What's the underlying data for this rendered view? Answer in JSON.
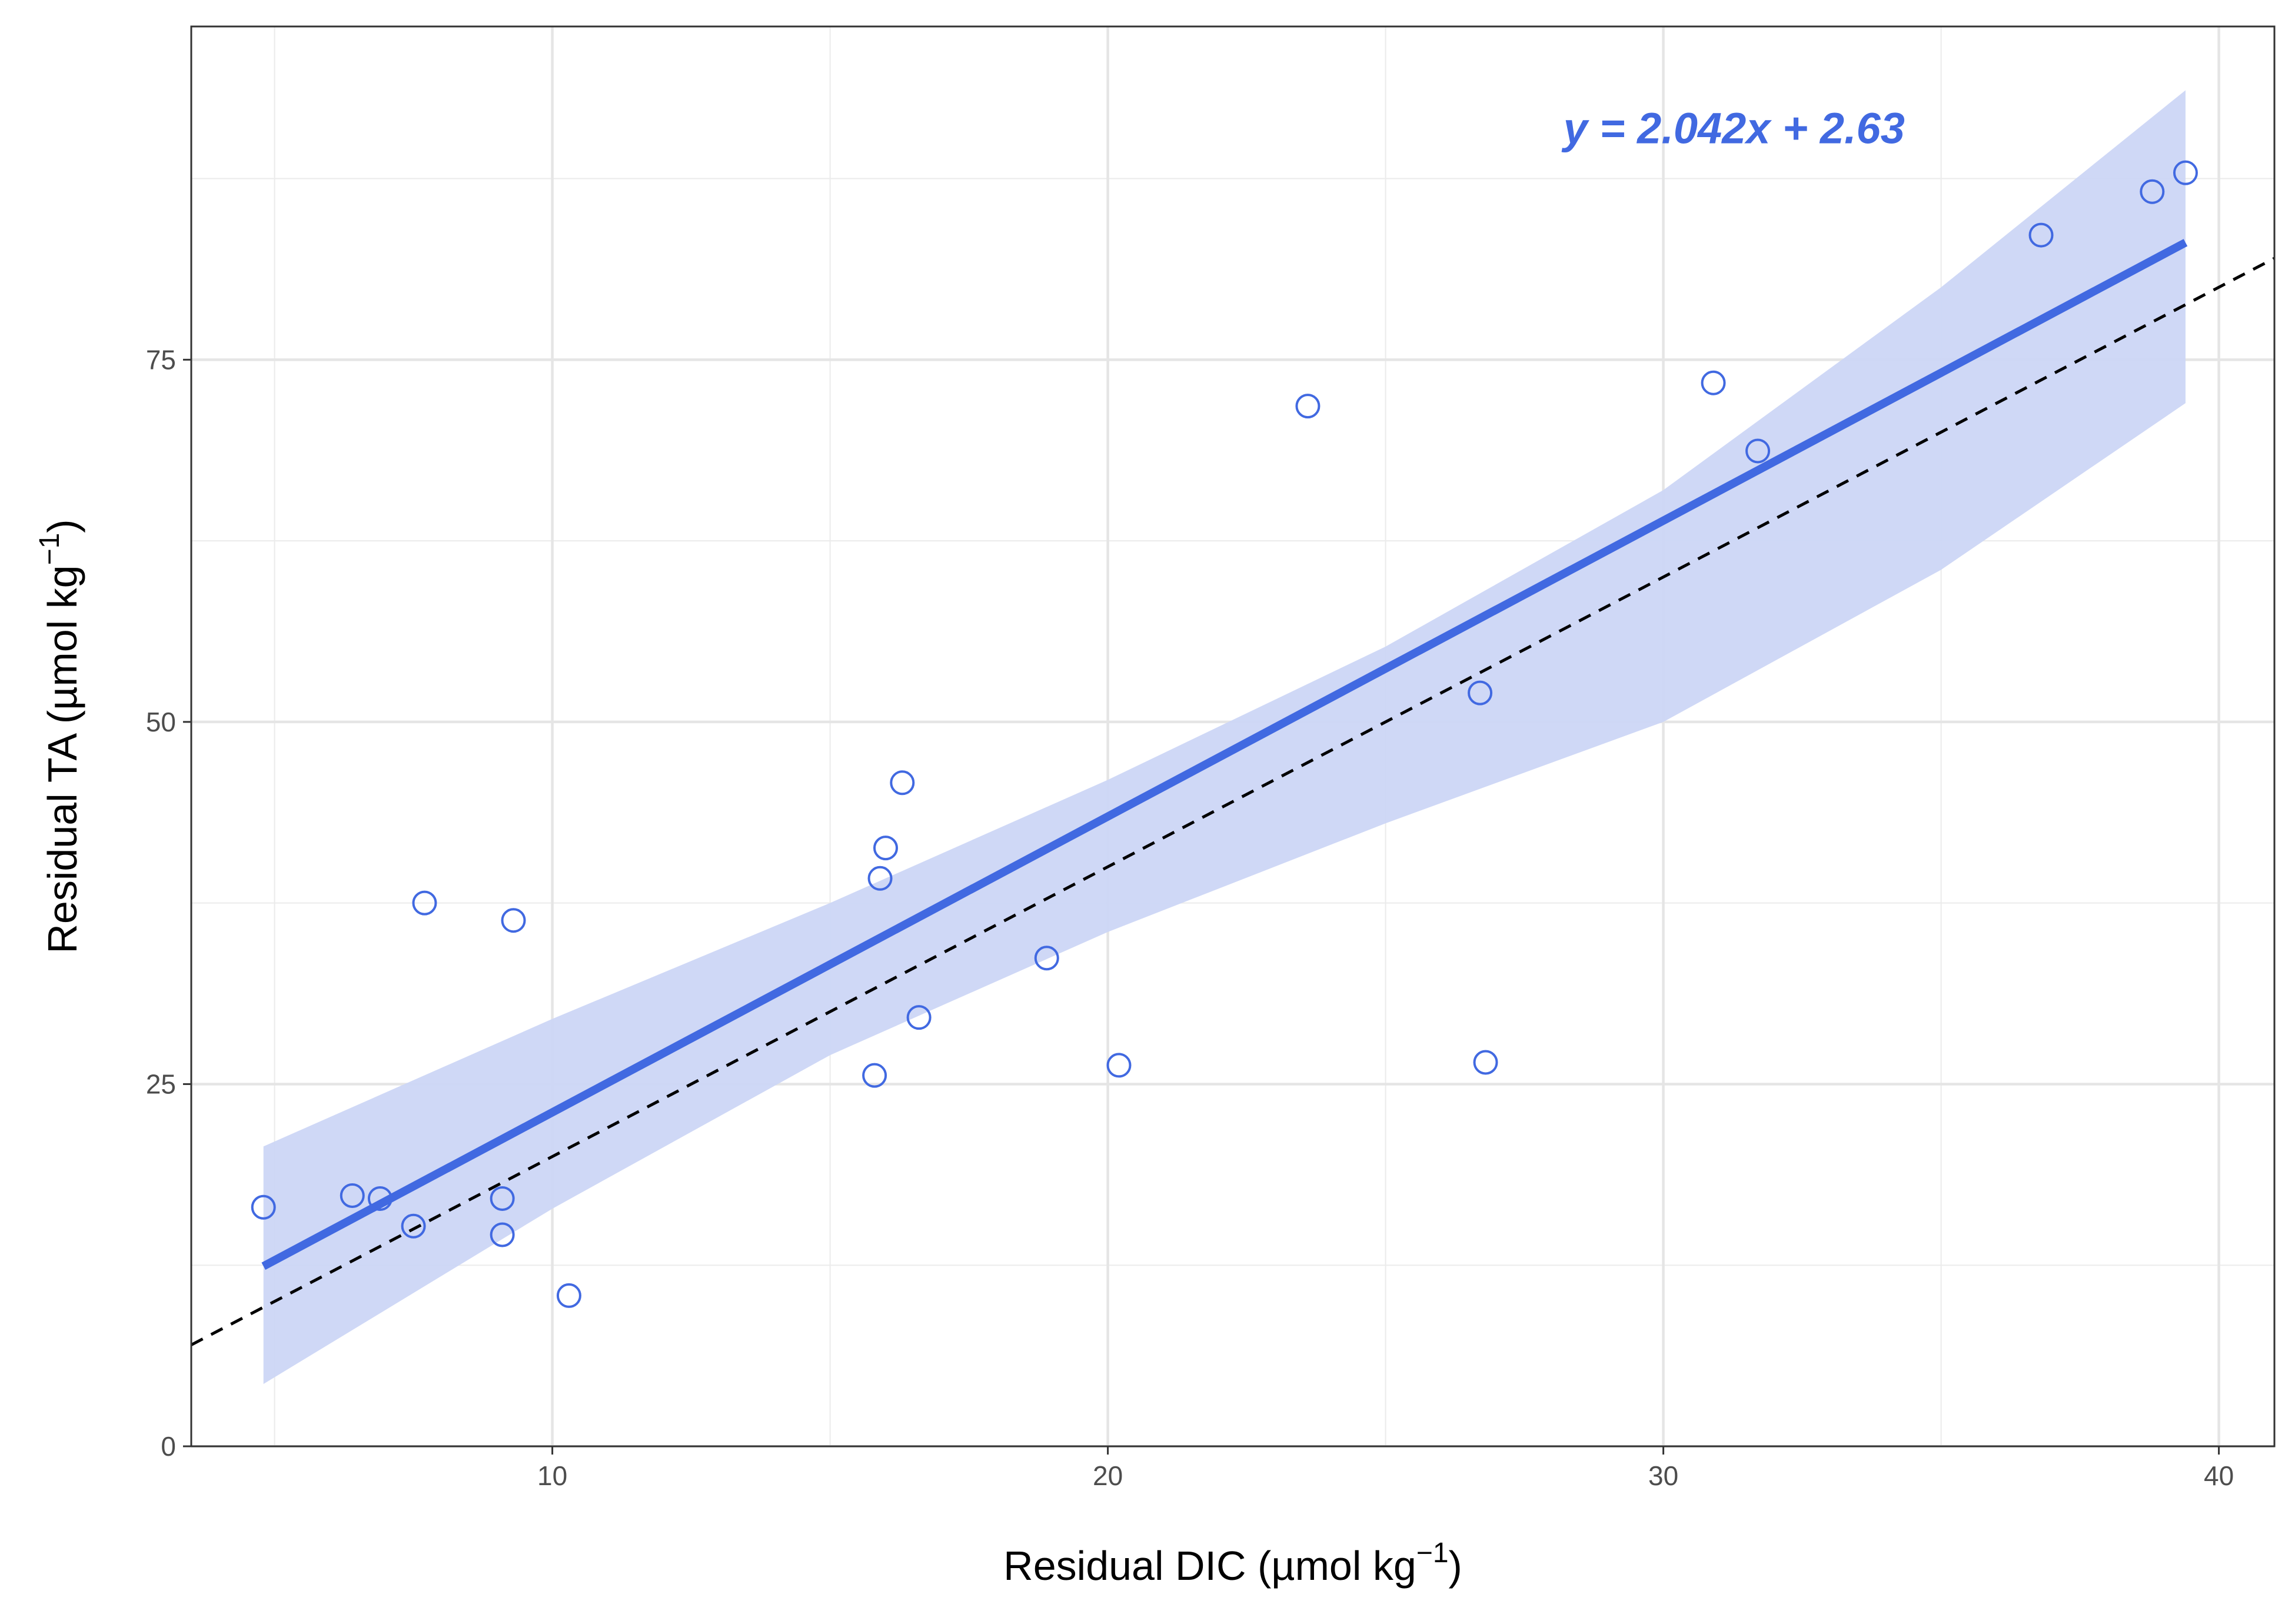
{
  "chart_data": {
    "type": "scatter",
    "xlabel": "Residual DIC (µmol kg",
    "xlabel_sup": "−1",
    "xlabel_end": ")",
    "ylabel": "Residual TA (µmol kg",
    "ylabel_sup": "−1",
    "ylabel_end": ")",
    "xlim": [
      3.5,
      41
    ],
    "ylim": [
      0,
      98
    ],
    "x_ticks": [
      10,
      20,
      30,
      40
    ],
    "x_tick_labels": [
      "10",
      "20",
      "30",
      "40"
    ],
    "y_ticks": [
      0,
      25,
      50,
      75
    ],
    "y_tick_labels": [
      "0",
      "25",
      "50",
      "75"
    ],
    "x_minor_gridlines": [
      5,
      15,
      25,
      35
    ],
    "y_minor_gridlines": [
      12.5,
      37.5,
      62.5,
      87.5
    ],
    "grid": true,
    "points": {
      "x": [
        4.8,
        6.4,
        6.9,
        7.5,
        7.7,
        9.1,
        9.1,
        9.3,
        10.3,
        15.8,
        15.9,
        16.0,
        16.3,
        16.6,
        18.9,
        20.2,
        23.6,
        26.7,
        26.8,
        30.9,
        31.7,
        36.8,
        38.8,
        39.4
      ],
      "y": [
        16.5,
        17.3,
        17.1,
        15.2,
        37.5,
        17.1,
        14.6,
        36.3,
        10.4,
        25.6,
        39.2,
        41.3,
        45.8,
        29.6,
        33.7,
        26.3,
        71.8,
        52.0,
        26.5,
        73.4,
        68.7,
        83.6,
        86.6,
        87.9
      ]
    },
    "point_color": "#4169e1",
    "fit": {
      "slope": 2.042,
      "intercept": 2.63,
      "x_range": [
        4.8,
        39.4
      ],
      "color": "#4169e1",
      "ci_color": "#ccd6f5",
      "ci_upper": {
        "x": [
          4.8,
          10,
          15,
          20,
          25,
          30,
          35,
          39.4
        ],
        "y": [
          20.7,
          29.5,
          37.5,
          46.0,
          55.2,
          66.0,
          80.0,
          93.6
        ]
      },
      "ci_lower": {
        "x": [
          4.8,
          10,
          15,
          20,
          25,
          30,
          35,
          39.4
        ],
        "y": [
          4.3,
          16.4,
          27.0,
          35.5,
          43.0,
          50.0,
          60.5,
          72.0
        ]
      }
    },
    "reference_line": {
      "slope": 2.0,
      "intercept": 0,
      "style": "dashed",
      "color": "#000000"
    },
    "annotation": {
      "text": "y = 2.042x + 2.63",
      "x": 28.2,
      "y": 91.0,
      "color": "#4169e1"
    }
  }
}
